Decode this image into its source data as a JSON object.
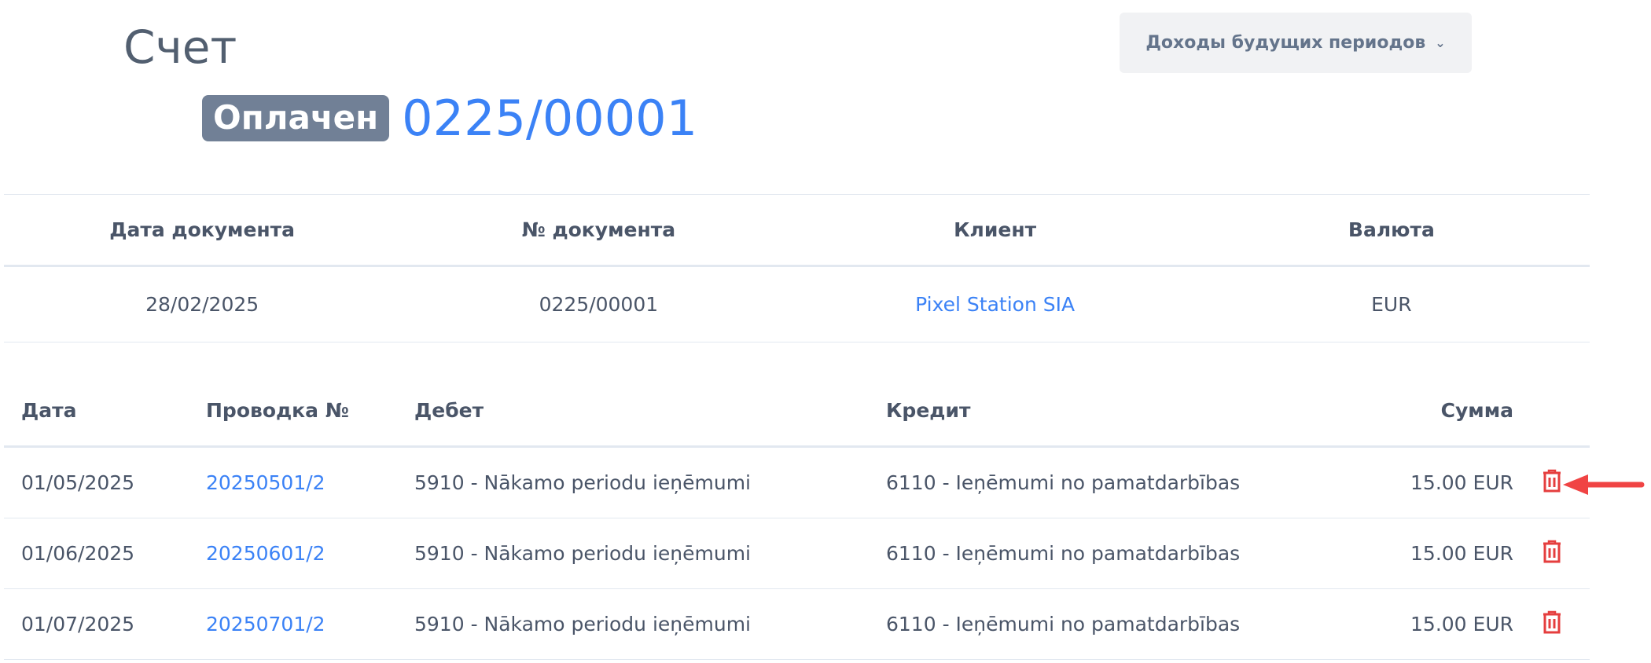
{
  "header": {
    "title": "Счет",
    "status": "Оплачен",
    "number": "0225/00001",
    "dropdown_label": "Доходы будущих периодов"
  },
  "info": {
    "headers": [
      "Дата документа",
      "№ документа",
      "Клиент",
      "Валюта"
    ],
    "values": [
      "28/02/2025",
      "0225/00001",
      "Pixel Station SIA",
      "EUR"
    ]
  },
  "entries": {
    "headers": [
      "Дата",
      "Проводка №",
      "Дебет",
      "Кредит",
      "Сумма"
    ],
    "rows": [
      {
        "date": "01/05/2025",
        "entry": "20250501/2",
        "debit": "5910 - Nākamo periodu ieņēmumi",
        "credit": "6110 - Ieņēmumi no pamatdarbības",
        "amount": "15.00 EUR"
      },
      {
        "date": "01/06/2025",
        "entry": "20250601/2",
        "debit": "5910 - Nākamo periodu ieņēmumi",
        "credit": "6110 - Ieņēmumi no pamatdarbības",
        "amount": "15.00 EUR"
      },
      {
        "date": "01/07/2025",
        "entry": "20250701/2",
        "debit": "5910 - Nākamo periodu ieņēmumi",
        "credit": "6110 - Ieņēmumi no pamatdarbības",
        "amount": "15.00 EUR"
      }
    ]
  },
  "colors": {
    "accent": "#3b82f6",
    "badge": "#718096",
    "danger": "#e53e3e",
    "arrow": "#f04444"
  }
}
